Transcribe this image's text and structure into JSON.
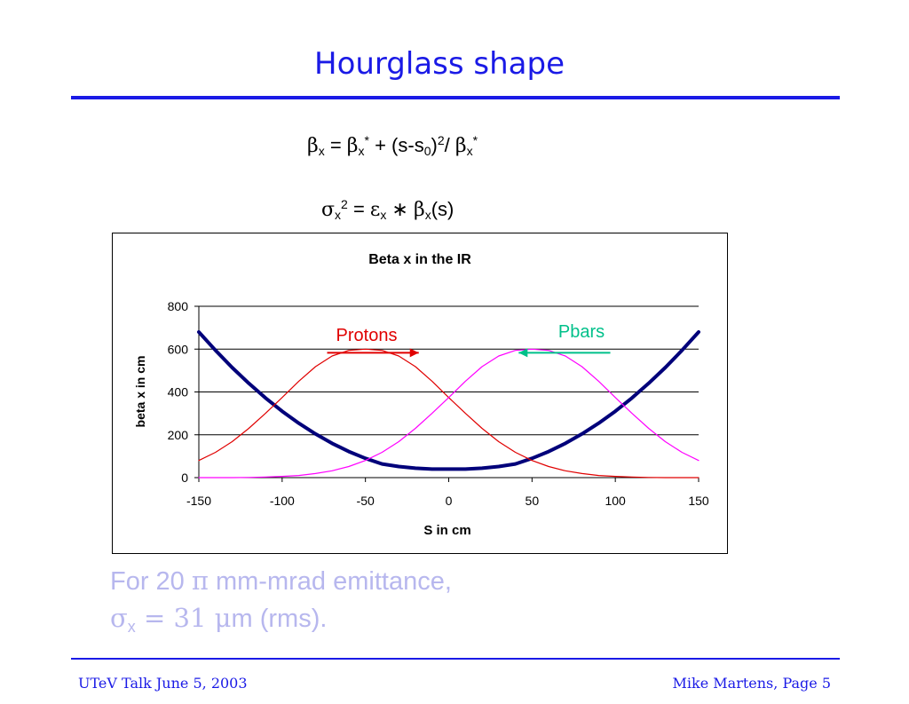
{
  "slide": {
    "title": "Hourglass shape",
    "formula1": {
      "beta": "β",
      "x": "x",
      "eq": " = ",
      "star": "*",
      "plus": " + (s-s",
      "zero": "0",
      "close": ")",
      "two": "2",
      "slash": "/ "
    },
    "formula2": {
      "sigma": "σ",
      "x": "x",
      "two": "2",
      "eq": " = ",
      "eps": "ε",
      "times": " ∗ ",
      "beta": "β",
      "s": "(s)"
    },
    "note": {
      "line1_pre": "For 20 ",
      "pi": "π",
      "line1_post": " mm-mrad emittance,",
      "sigma": "σ",
      "x": "x",
      "eq": "  = 31 ",
      "mu": "μ",
      "line2_post": "m (rms)."
    },
    "footer": {
      "left": "UTeV Talk    June 5, 2003",
      "right": "Mike Martens, Page 5"
    }
  },
  "chart_data": {
    "type": "line",
    "title": "Beta x in the IR",
    "xlabel": "S in cm",
    "ylabel": "beta x in cm",
    "xlim": [
      -150,
      150
    ],
    "ylim": [
      0,
      800
    ],
    "xticks": [
      "-150",
      "-100",
      "-50",
      "0",
      "50",
      "100",
      "150"
    ],
    "yticks": [
      "0",
      "200",
      "400",
      "600",
      "800"
    ],
    "grid": "horizontal",
    "colors": {
      "beta": "#00007a",
      "protons": "#e00000",
      "pbars": "#ff00ff",
      "protons_arrow": "#e00000",
      "pbars_arrow": "#00c08a"
    },
    "series": [
      {
        "key": "beta",
        "x": [
          -150,
          -140,
          -130,
          -120,
          -110,
          -100,
          -90,
          -80,
          -70,
          -60,
          -50,
          -40,
          -30,
          -20,
          -10,
          0,
          10,
          20,
          30,
          40,
          50,
          60,
          70,
          80,
          90,
          100,
          110,
          120,
          130,
          140,
          150
        ],
        "values": [
          680,
          594,
          514,
          440,
          372,
          310,
          254,
          204,
          160,
          122,
          90,
          64,
          52,
          44,
          40,
          40,
          40,
          44,
          52,
          64,
          90,
          122,
          160,
          204,
          254,
          310,
          372,
          440,
          514,
          594,
          680
        ]
      },
      {
        "key": "protons",
        "annotation": "Protons",
        "x": [
          -150,
          -140,
          -130,
          -120,
          -110,
          -100,
          -90,
          -80,
          -70,
          -60,
          -50,
          -40,
          -30,
          -20,
          -10,
          0,
          10,
          20,
          30,
          40,
          50,
          60,
          70,
          80,
          90,
          100,
          110,
          120,
          130,
          140,
          150
        ],
        "values": [
          80,
          118,
          168,
          230,
          300,
          374,
          450,
          518,
          568,
          594,
          600,
          594,
          568,
          518,
          450,
          374,
          300,
          230,
          168,
          118,
          80,
          52,
          32,
          19,
          10,
          6,
          3,
          1,
          0,
          0,
          0
        ]
      },
      {
        "key": "pbars",
        "annotation": "Pbars",
        "x": [
          -150,
          -140,
          -130,
          -120,
          -110,
          -100,
          -90,
          -80,
          -70,
          -60,
          -50,
          -40,
          -30,
          -20,
          -10,
          0,
          10,
          20,
          30,
          40,
          50,
          60,
          70,
          80,
          90,
          100,
          110,
          120,
          130,
          140,
          150
        ],
        "values": [
          0,
          0,
          0,
          1,
          3,
          6,
          10,
          19,
          32,
          52,
          80,
          118,
          168,
          230,
          300,
          374,
          450,
          518,
          568,
          594,
          600,
          594,
          568,
          518,
          450,
          374,
          300,
          230,
          168,
          118,
          80
        ]
      }
    ],
    "arrows": [
      {
        "key": "protons_arrow",
        "from": [
          -73,
          583
        ],
        "to": [
          -18,
          583
        ]
      },
      {
        "key": "pbars_arrow",
        "from": [
          97,
          583
        ],
        "to": [
          42,
          583
        ]
      }
    ]
  }
}
